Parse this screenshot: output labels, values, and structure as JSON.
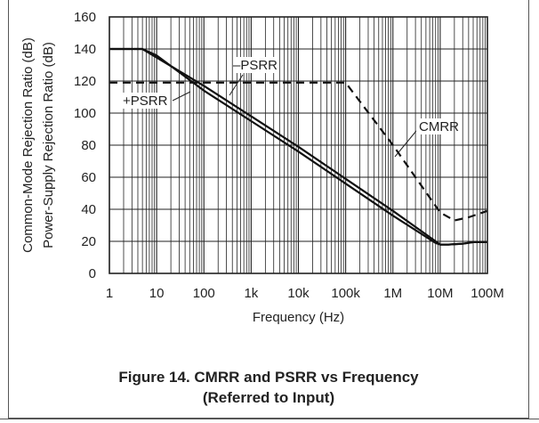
{
  "chart_data": {
    "type": "line",
    "x_scale": "log",
    "xlabel": "Frequency (Hz)",
    "ylabels": [
      "Common-Mode Rejection Ratio (dB)",
      "Power-Supply Rejection Ratio (dB)"
    ],
    "xlim": [
      1,
      100000000
    ],
    "ylim": [
      0,
      160
    ],
    "x_ticks": [
      1,
      10,
      100,
      1000,
      10000,
      100000,
      1000000,
      10000000,
      100000000
    ],
    "x_tick_labels": [
      "1",
      "10",
      "100",
      "1k",
      "10k",
      "100k",
      "1M",
      "10M",
      "100M"
    ],
    "y_ticks": [
      0,
      20,
      40,
      60,
      80,
      100,
      120,
      140,
      160
    ],
    "y_tick_labels": [
      "0",
      "20",
      "40",
      "60",
      "80",
      "100",
      "120",
      "140",
      "160"
    ],
    "grid": true,
    "series": [
      {
        "name": "–PSRR",
        "style": "solid",
        "x": [
          1,
          5,
          100,
          1000,
          10000,
          100000,
          1000000,
          10000000,
          15000000,
          30000000,
          50000000,
          100000000
        ],
        "y": [
          140,
          140,
          117,
          98,
          79,
          59,
          39,
          18,
          18,
          18.5,
          19.5,
          19.5
        ]
      },
      {
        "name": "+PSRR",
        "style": "solid",
        "x": [
          1,
          5,
          10,
          100,
          1000,
          10000,
          100000,
          1000000,
          8000000,
          10000000,
          15000000,
          30000000,
          50000000,
          100000000
        ],
        "y": [
          140,
          140,
          136,
          114,
          95,
          76,
          56,
          36,
          19,
          18,
          18,
          18.5,
          19.5,
          19.5
        ]
      },
      {
        "name": "CMRR",
        "style": "dashed",
        "x": [
          1,
          100000,
          1000000,
          10000000,
          20000000,
          40000000,
          100000000
        ],
        "y": [
          119,
          119,
          80,
          38,
          33,
          35,
          39
        ]
      }
    ],
    "annotations": [
      "–PSRR",
      "+PSRR",
      "CMRR"
    ]
  },
  "caption": {
    "line1": "Figure 14. CMRR and PSRR vs Frequency",
    "line2": "(Referred to Input)"
  }
}
